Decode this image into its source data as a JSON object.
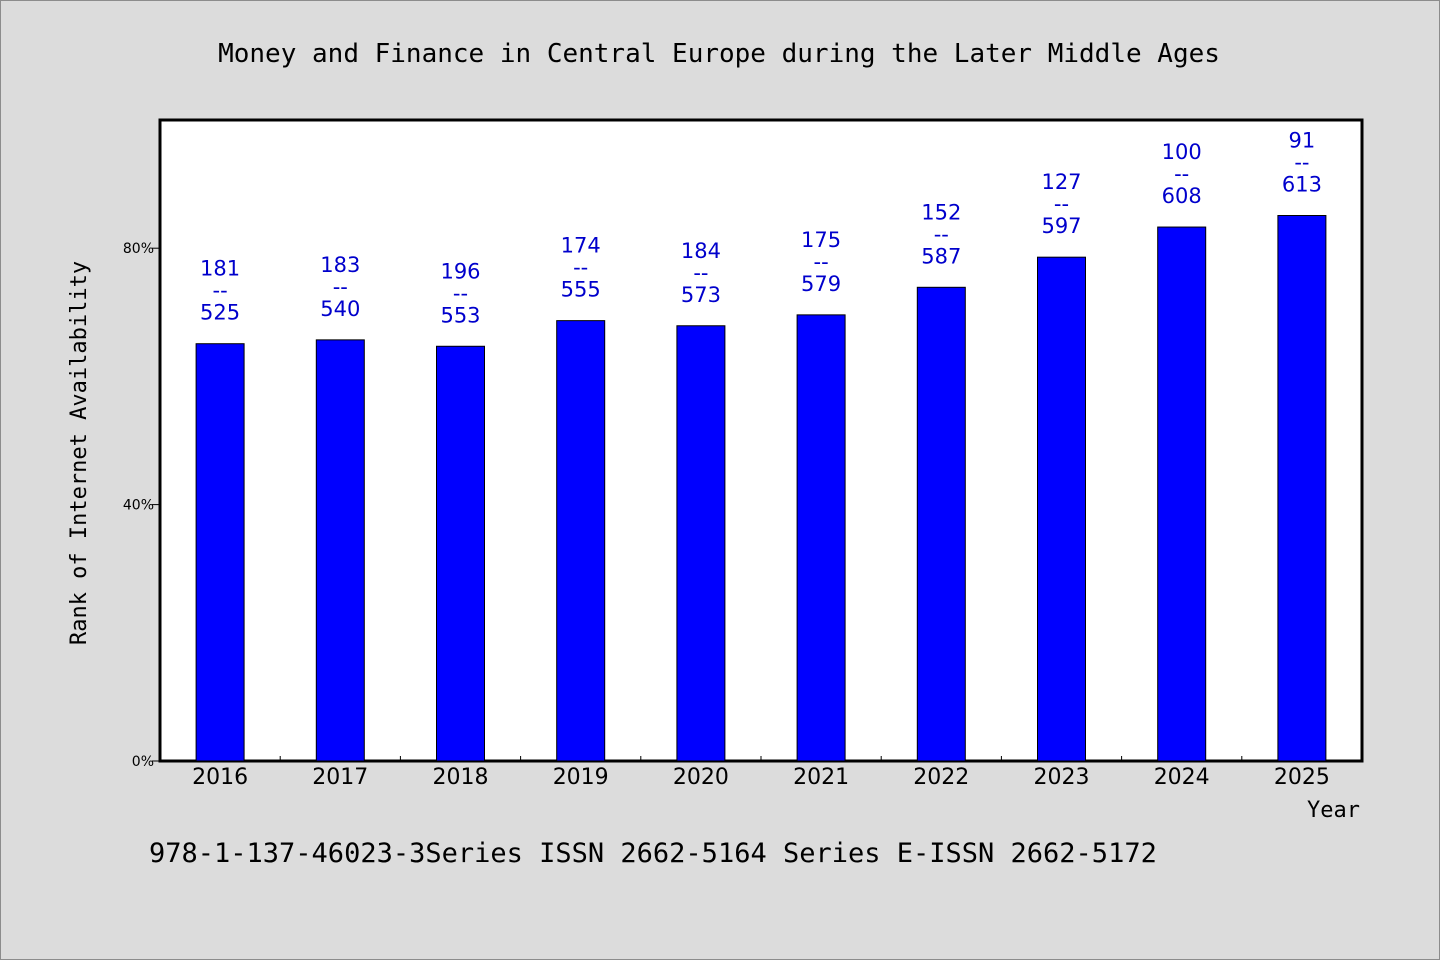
{
  "chart_data": {
    "type": "bar",
    "title": "Money and Finance in Central Europe during the Later Middle Ages",
    "xlabel": "Year",
    "ylabel": "Rank of Internet Availability",
    "categories": [
      "2016",
      "2017",
      "2018",
      "2019",
      "2020",
      "2021",
      "2022",
      "2023",
      "2024",
      "2025"
    ],
    "series": [
      {
        "values": [
          65.1,
          65.7,
          64.7,
          68.7,
          67.9,
          69.6,
          73.9,
          78.6,
          83.3,
          85.1
        ],
        "label_top": [
          "181",
          "183",
          "196",
          "174",
          "184",
          "175",
          "152",
          "127",
          "100",
          "91"
        ],
        "label_bottom": [
          "525",
          "540",
          "553",
          "555",
          "573",
          "579",
          "587",
          "597",
          "608",
          "613"
        ]
      }
    ],
    "label_separator": "--",
    "ylim": [
      0,
      100
    ],
    "yticks": [
      0,
      40,
      80
    ],
    "ytick_labels": [
      "0%",
      "40%",
      "80%"
    ],
    "grid": false,
    "legend": "none",
    "colors": {
      "bar": "#0000ff",
      "label": "#0000cc",
      "plot_bg": "#ffffff",
      "page_bg": "#dcdcdc"
    }
  },
  "footer": {
    "note": "978-1-137-46023-3Series ISSN 2662-5164 Series E-ISSN 2662-5172"
  }
}
